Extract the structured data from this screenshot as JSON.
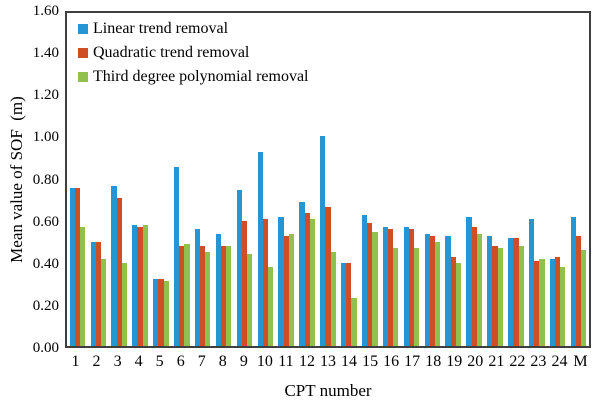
{
  "chart_data": {
    "type": "bar",
    "title": "",
    "xlabel": "CPT number",
    "ylabel": "Mean value of SOF  (m)",
    "ylim": [
      0,
      1.6
    ],
    "yticks": [
      "0.00",
      "0.20",
      "0.40",
      "0.60",
      "0.80",
      "1.00",
      "1.20",
      "1.40",
      "1.60"
    ],
    "categories": [
      "1",
      "2",
      "3",
      "4",
      "5",
      "6",
      "7",
      "8",
      "9",
      "10",
      "11",
      "12",
      "13",
      "14",
      "15",
      "16",
      "17",
      "18",
      "19",
      "20",
      "21",
      "22",
      "23",
      "24",
      "M"
    ],
    "series": [
      {
        "name": "Linear trend removal",
        "color": "#2695D3",
        "values": [
          0.76,
          0.5,
          0.77,
          0.58,
          0.32,
          0.86,
          0.56,
          0.54,
          0.75,
          0.93,
          0.62,
          0.69,
          1.01,
          0.4,
          0.63,
          0.57,
          0.57,
          0.54,
          0.53,
          0.62,
          0.53,
          0.52,
          0.61,
          0.42,
          0.62
        ]
      },
      {
        "name": "Quadratic trend removal",
        "color": "#CE4E26",
        "values": [
          0.76,
          0.5,
          0.71,
          0.57,
          0.32,
          0.48,
          0.48,
          0.48,
          0.6,
          0.61,
          0.53,
          0.64,
          0.67,
          0.4,
          0.59,
          0.56,
          0.56,
          0.53,
          0.43,
          0.57,
          0.48,
          0.52,
          0.41,
          0.43,
          0.53
        ]
      },
      {
        "name": "Third degree polynomial removal",
        "color": "#90C04E",
        "values": [
          0.57,
          0.42,
          0.4,
          0.58,
          0.31,
          0.49,
          0.45,
          0.48,
          0.44,
          0.38,
          0.54,
          0.61,
          0.45,
          0.23,
          0.55,
          0.47,
          0.47,
          0.5,
          0.4,
          0.54,
          0.47,
          0.48,
          0.42,
          0.38,
          0.46
        ]
      }
    ],
    "legend_position": "top-left-inside",
    "grid": false,
    "axis_color": "#3f3f3f"
  }
}
